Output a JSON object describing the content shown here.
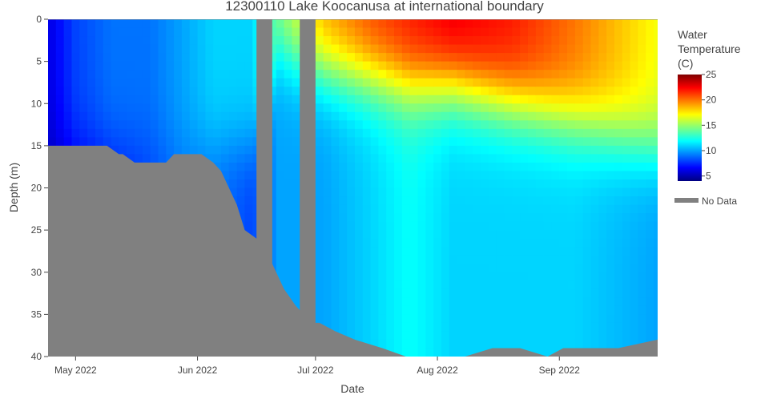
{
  "chart_data": {
    "type": "heatmap",
    "title": "12300110 Lake Koocanusa at international boundary",
    "xlabel": "Date",
    "ylabel": "Depth (m)",
    "x_range": [
      "2022-04-24",
      "2022-09-26"
    ],
    "ylim": [
      40,
      0
    ],
    "y_ticks": [
      0,
      5,
      10,
      15,
      20,
      25,
      30,
      35,
      40
    ],
    "x_ticks": [
      {
        "date": "2022-05-01",
        "label": "May 2022"
      },
      {
        "date": "2022-06-01",
        "label": "Jun 2022"
      },
      {
        "date": "2022-07-01",
        "label": "Jul 2022"
      },
      {
        "date": "2022-08-01",
        "label": "Aug 2022"
      },
      {
        "date": "2022-09-01",
        "label": "Sep 2022"
      }
    ],
    "colorbar": {
      "title_lines": [
        "Water",
        "Temperature",
        "(C)"
      ],
      "range": [
        4,
        25
      ],
      "ticks": [
        5,
        10,
        15,
        20,
        25
      ],
      "colorscale": [
        "#00007f",
        "#0000ff",
        "#007fff",
        "#00ffff",
        "#7fff7f",
        "#ffff00",
        "#ff7f00",
        "#ff0000",
        "#7f0000"
      ]
    },
    "legend": {
      "label": "No Data",
      "color": "#808080",
      "position": "right"
    },
    "no_data_color": "#808080",
    "data_gaps": [
      {
        "start": "2022-06-16",
        "end": "2022-06-20"
      },
      {
        "start": "2022-06-27",
        "end": "2022-07-01"
      }
    ],
    "bottom_depth": [
      {
        "date": "2022-04-24",
        "depth": 15
      },
      {
        "date": "2022-05-09",
        "depth": 15
      },
      {
        "date": "2022-05-12",
        "depth": 16
      },
      {
        "date": "2022-05-13",
        "depth": 16
      },
      {
        "date": "2022-05-16",
        "depth": 17
      },
      {
        "date": "2022-05-24",
        "depth": 17
      },
      {
        "date": "2022-05-26",
        "depth": 16
      },
      {
        "date": "2022-06-02",
        "depth": 16
      },
      {
        "date": "2022-06-05",
        "depth": 17
      },
      {
        "date": "2022-06-07",
        "depth": 18
      },
      {
        "date": "2022-06-09",
        "depth": 20
      },
      {
        "date": "2022-06-11",
        "depth": 22
      },
      {
        "date": "2022-06-13",
        "depth": 25
      },
      {
        "date": "2022-06-16",
        "depth": 26
      },
      {
        "date": "2022-06-20",
        "depth": 29
      },
      {
        "date": "2022-06-23",
        "depth": 32
      },
      {
        "date": "2022-06-26",
        "depth": 34
      },
      {
        "date": "2022-06-28",
        "depth": 35
      },
      {
        "date": "2022-06-30",
        "depth": 36
      },
      {
        "date": "2022-07-02",
        "depth": 36
      },
      {
        "date": "2022-07-06",
        "depth": 37
      },
      {
        "date": "2022-07-11",
        "depth": 38
      },
      {
        "date": "2022-07-18",
        "depth": 39
      },
      {
        "date": "2022-07-24",
        "depth": 40
      },
      {
        "date": "2022-08-08",
        "depth": 40
      },
      {
        "date": "2022-08-15",
        "depth": 39
      },
      {
        "date": "2022-08-22",
        "depth": 39
      },
      {
        "date": "2022-08-29",
        "depth": 40
      },
      {
        "date": "2022-09-02",
        "depth": 39
      },
      {
        "date": "2022-09-12",
        "depth": 39
      },
      {
        "date": "2022-09-16",
        "depth": 39
      },
      {
        "date": "2022-09-26",
        "depth": 38
      }
    ],
    "temperature_profiles": [
      {
        "date": "2022-04-24",
        "surface": 6,
        "thermocline_depth": 15,
        "deep": 5
      },
      {
        "date": "2022-05-01",
        "surface": 8,
        "thermocline_depth": 15,
        "deep": 6
      },
      {
        "date": "2022-05-10",
        "surface": 9,
        "thermocline_depth": 15,
        "deep": 7
      },
      {
        "date": "2022-05-20",
        "surface": 9,
        "thermocline_depth": 15,
        "deep": 8
      },
      {
        "date": "2022-05-28",
        "surface": 10,
        "thermocline_depth": 15,
        "deep": 9
      },
      {
        "date": "2022-06-05",
        "surface": 11,
        "thermocline_depth": 15,
        "deep": 9
      },
      {
        "date": "2022-06-15",
        "surface": 11,
        "thermocline_depth": 15,
        "deep": 8
      },
      {
        "date": "2022-06-22",
        "surface": 15,
        "thermocline_depth": 4,
        "deep": 10
      },
      {
        "date": "2022-07-03",
        "surface": 19,
        "thermocline_depth": 6,
        "deep": 10
      },
      {
        "date": "2022-07-15",
        "surface": 21,
        "thermocline_depth": 7,
        "deep": 11
      },
      {
        "date": "2022-07-25",
        "surface": 22,
        "thermocline_depth": 8,
        "deep": 12
      },
      {
        "date": "2022-08-05",
        "surface": 23,
        "thermocline_depth": 8,
        "deep": 11
      },
      {
        "date": "2022-08-20",
        "surface": 22,
        "thermocline_depth": 10,
        "deep": 11
      },
      {
        "date": "2022-09-05",
        "surface": 20,
        "thermocline_depth": 12,
        "deep": 11
      },
      {
        "date": "2022-09-26",
        "surface": 17,
        "thermocline_depth": 15,
        "deep": 10
      }
    ]
  }
}
